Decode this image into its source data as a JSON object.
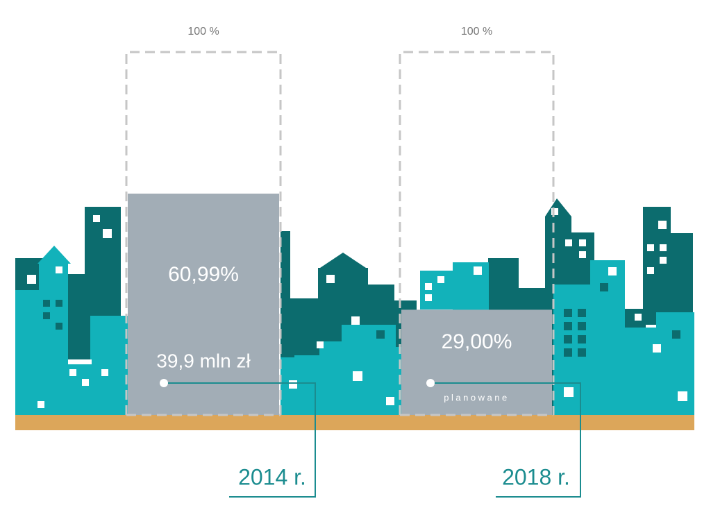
{
  "chart_data": {
    "type": "bar",
    "categories": [
      "2014 r.",
      "2018 r."
    ],
    "values": [
      60.99,
      29.0
    ],
    "value_labels": [
      "60,99%",
      "29,00%"
    ],
    "notes": [
      "39,9 mln zł",
      "planowane"
    ],
    "color": "#a2adb6",
    "ylim": [
      0,
      100
    ],
    "yticks": [
      {
        "value": 100,
        "label": "100 %"
      }
    ]
  }
}
